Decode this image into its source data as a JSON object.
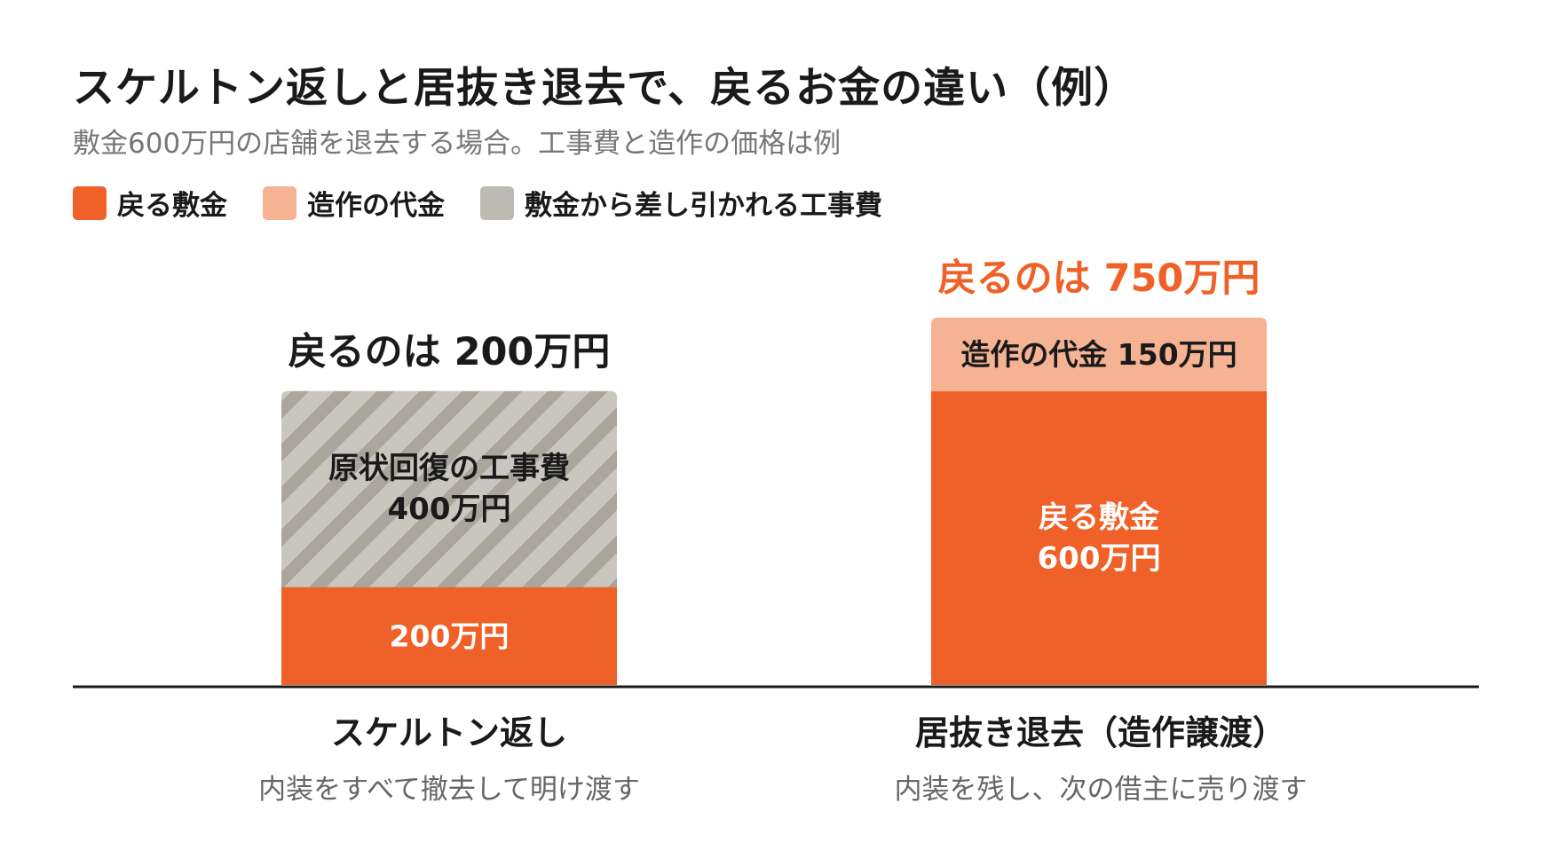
{
  "title": "スケルトン返しと居抜き退去で、戻るお金の違い（例）",
  "subtitle": "敷金600万円の店舗を退去する場合。工事費と造作の価格は例",
  "legend": [
    {
      "label": "戻る敷金",
      "color": "#ef6128"
    },
    {
      "label": "造作の代金",
      "color": "#f6b394"
    },
    {
      "label": "敷金から差し引かれる工事費",
      "color": "#bdbab3"
    }
  ],
  "groups": [
    {
      "title": "スケルトン返し",
      "subtitle": "内装をすべて撤去して明け渡す"
    },
    {
      "title": "居抜き退去（造作譲渡）",
      "subtitle": "内装を残し、次の借主に売り渡す"
    }
  ],
  "chart_data": {
    "type": "bar",
    "stacked": true,
    "unit": "万円",
    "ylim": [
      0,
      750
    ],
    "categories": [
      "スケルトン返し",
      "居抜き退去（造作譲渡）"
    ],
    "series": [
      {
        "name": "戻る敷金",
        "values": [
          200,
          600
        ],
        "color": "#ef6128"
      },
      {
        "name": "敷金から差し引かれる工事費",
        "values": [
          400,
          0
        ],
        "color": "#bdbab3",
        "pattern": "diagonal-stripes"
      },
      {
        "name": "造作の代金",
        "values": [
          0,
          150
        ],
        "color": "#f6b394"
      }
    ],
    "segment_labels": [
      [
        {
          "series": "戻る敷金",
          "lines": [
            "200万円"
          ],
          "text_color": "#ffffff"
        },
        {
          "series": "敷金から差し引かれる工事費",
          "lines": [
            "原状回復の工事費",
            "400万円"
          ],
          "text_color": "#1a1a1a"
        }
      ],
      [
        {
          "series": "戻る敷金",
          "lines": [
            "戻る敷金",
            "600万円"
          ],
          "text_color": "#ffffff"
        },
        {
          "series": "造作の代金",
          "lines": [
            "造作の代金 150万円"
          ],
          "text_color": "#1a1a1a"
        }
      ]
    ],
    "total_labels": [
      {
        "text": "戻るのは 200万円",
        "color": "#1a1a1a"
      },
      {
        "text": "戻るのは 750万円",
        "color": "#ef6128"
      }
    ],
    "colors": {
      "axis": "#1a1a1a",
      "stripe_light": "#c9c6bf",
      "stripe_dark": "#aaa69e"
    }
  }
}
